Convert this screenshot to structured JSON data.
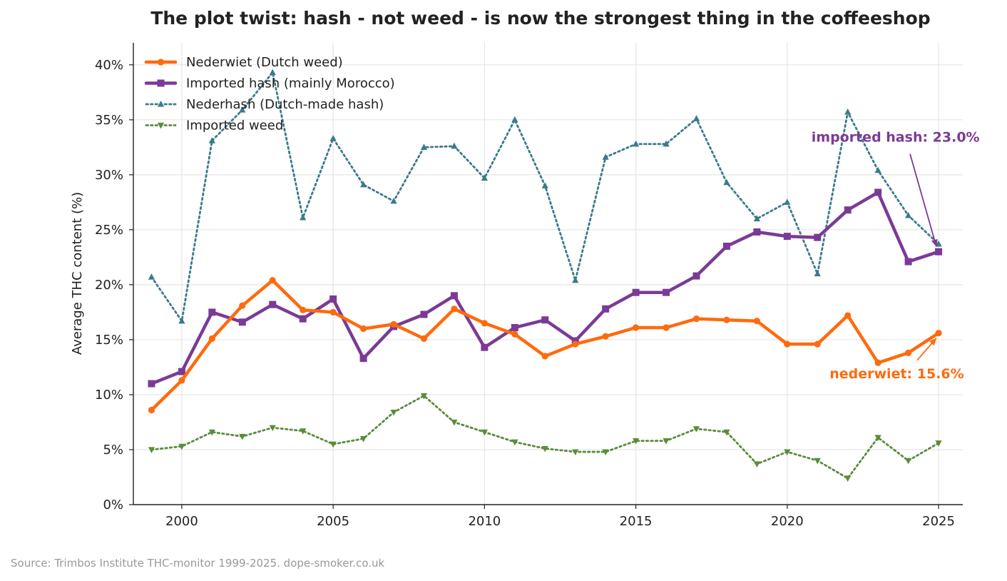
{
  "source_note": "Source: Trimbos Institute THC-monitor 1999-2025. dope-smoker.co.uk",
  "chart_data": {
    "type": "line",
    "title": "The plot twist: hash - not weed - is now the strongest thing in the coffeeshop",
    "xlabel": "",
    "ylabel": "Average THC content (%)",
    "xlim": [
      1998.4,
      2025.8
    ],
    "ylim": [
      0,
      42
    ],
    "x_ticks": [
      2000,
      2005,
      2010,
      2015,
      2020,
      2025
    ],
    "x_tick_labels": [
      "2000",
      "2005",
      "2010",
      "2015",
      "2020",
      "2025"
    ],
    "y_ticks": [
      0,
      5,
      10,
      15,
      20,
      25,
      30,
      35,
      40
    ],
    "y_tick_labels": [
      "0%",
      "5%",
      "10%",
      "15%",
      "20%",
      "25%",
      "30%",
      "35%",
      "40%"
    ],
    "grid": true,
    "legend_position": "top-left",
    "x": [
      1999,
      2000,
      2001,
      2002,
      2003,
      2004,
      2005,
      2006,
      2007,
      2008,
      2009,
      2010,
      2011,
      2012,
      2013,
      2014,
      2015,
      2016,
      2017,
      2018,
      2019,
      2020,
      2021,
      2022,
      2023,
      2024,
      2025
    ],
    "series": [
      {
        "name": "Nederwiet (Dutch weed)",
        "color": "#ff6a0d",
        "line_style": "solid",
        "marker": "circle",
        "values": [
          8.6,
          11.3,
          15.1,
          18.1,
          20.4,
          17.7,
          17.5,
          16.0,
          16.4,
          15.1,
          17.8,
          16.5,
          15.5,
          13.5,
          14.6,
          15.3,
          16.1,
          16.1,
          16.9,
          16.8,
          16.7,
          14.6,
          14.6,
          17.2,
          12.9,
          13.8,
          15.6
        ]
      },
      {
        "name": "Imported hash (mainly Morocco)",
        "color": "#7b3a96",
        "line_style": "solid",
        "marker": "square",
        "values": [
          11.0,
          12.1,
          17.5,
          16.6,
          18.2,
          16.9,
          18.7,
          13.3,
          16.2,
          17.3,
          19.0,
          14.3,
          16.1,
          16.8,
          14.9,
          17.8,
          19.3,
          19.3,
          20.8,
          23.5,
          24.8,
          24.4,
          24.3,
          26.8,
          28.4,
          22.1,
          23.0
        ]
      },
      {
        "name": "Nederhash (Dutch-made hash)",
        "color": "#3a7a8c",
        "line_style": "dotted",
        "marker": "triangle-up",
        "values": [
          20.7,
          16.7,
          33.1,
          35.9,
          39.3,
          26.1,
          33.3,
          29.1,
          27.6,
          32.5,
          32.6,
          29.7,
          35.0,
          29.0,
          20.4,
          31.6,
          32.8,
          32.8,
          35.1,
          29.3,
          26.0,
          27.5,
          21.0,
          35.7,
          30.4,
          26.3,
          23.7
        ]
      },
      {
        "name": "Imported weed",
        "color": "#5a8c3a",
        "line_style": "dotted",
        "marker": "triangle-down",
        "values": [
          5.0,
          5.3,
          6.6,
          6.2,
          7.0,
          6.7,
          5.5,
          6.0,
          8.4,
          9.9,
          7.5,
          6.6,
          5.7,
          5.1,
          4.8,
          4.8,
          5.8,
          5.8,
          6.9,
          6.6,
          3.7,
          4.8,
          4.0,
          2.4,
          6.1,
          4.0,
          5.6
        ]
      }
    ],
    "annotations": [
      {
        "text": "imported hash: 23.0%",
        "color": "#7b3a96",
        "point": [
          2025,
          23.0
        ],
        "text_at": [
          2020.8,
          33.0
        ]
      },
      {
        "text": "nederwiet: 15.6%",
        "color": "#ff6a0d",
        "point": [
          2025,
          15.6
        ],
        "text_at": [
          2021.4,
          11.5
        ]
      }
    ]
  }
}
